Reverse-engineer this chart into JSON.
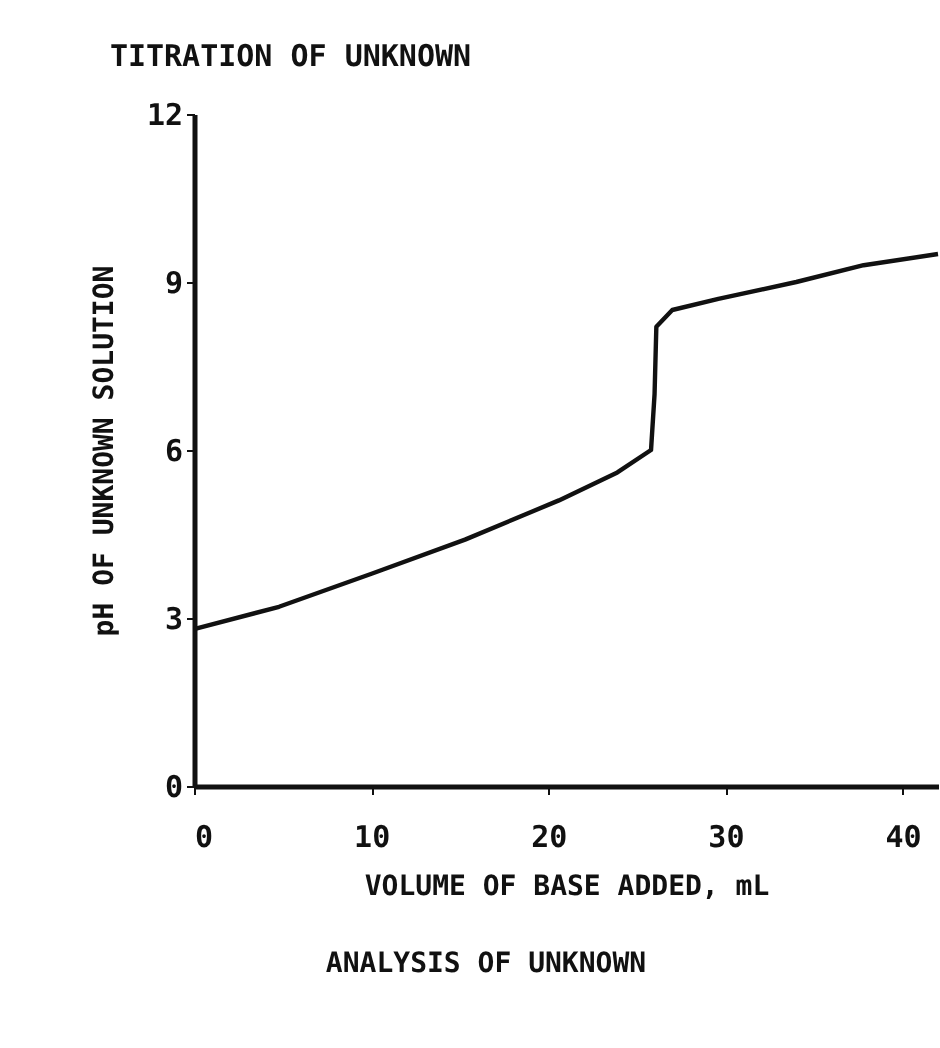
{
  "chart_data": {
    "type": "line",
    "title": "TITRATION OF UNKNOWN",
    "xlabel": "VOLUME OF BASE ADDED, mL",
    "ylabel": "pH OF UNKNOWN SOLUTION",
    "annotations": [
      "ANALYSIS OF UNKNOWN"
    ],
    "x": [
      0,
      4.8,
      10.1,
      15.3,
      20.6,
      23.9,
      25.8,
      26,
      26.1,
      27,
      29.6,
      34,
      37.8,
      42
    ],
    "series": [
      {
        "color": "#111111",
        "values": [
          2.8,
          3.2,
          3.8,
          4.4,
          5.1,
          5.6,
          6.0,
          7.0,
          8.2,
          8.5,
          8.7,
          9.0,
          9.3,
          9.5
        ]
      }
    ],
    "xlim": [
      0,
      42
    ],
    "xticks": [
      0,
      10,
      20,
      30,
      40
    ],
    "ylim": [
      0,
      12
    ],
    "yticks": [
      0,
      3,
      6,
      9,
      12
    ],
    "grid": false,
    "marker": "none",
    "line_style": "solid"
  }
}
